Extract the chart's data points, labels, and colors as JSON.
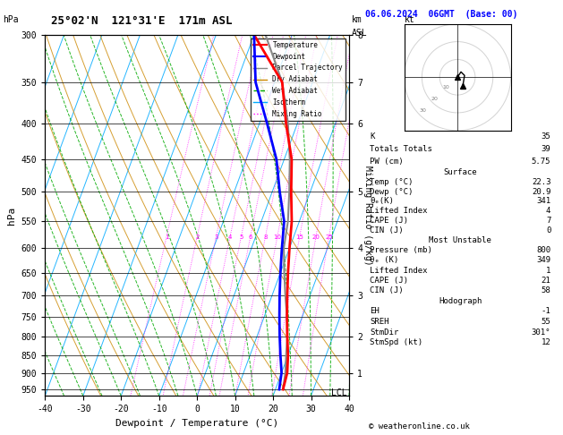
{
  "title_left": "25°02'N  121°31'E  171m ASL",
  "title_date": "06.06.2024  06GMT  (Base: 00)",
  "xlabel": "Dewpoint / Temperature (°C)",
  "ylabel_left": "hPa",
  "pressure_levels": [
    300,
    350,
    400,
    450,
    500,
    550,
    600,
    650,
    700,
    750,
    800,
    850,
    900,
    950
  ],
  "mixing_ratio_values": [
    1,
    2,
    3,
    4,
    5,
    6,
    8,
    10,
    15,
    20,
    25
  ],
  "km_pressures": [
    900,
    800,
    700,
    600,
    500,
    400,
    350,
    300
  ],
  "km_labels": [
    1,
    2,
    3,
    4,
    5,
    6,
    7,
    8
  ],
  "temp_profile_p": [
    950,
    900,
    850,
    800,
    750,
    700,
    650,
    600,
    550,
    500,
    450,
    400,
    350,
    300
  ],
  "temp_profile_T": [
    22.0,
    21.5,
    20.0,
    18.0,
    16.0,
    14.0,
    12.0,
    10.0,
    8.0,
    5.0,
    2.0,
    -3.0,
    -8.0,
    -20.0
  ],
  "dewpoint_profile_p": [
    950,
    900,
    850,
    800,
    750,
    700,
    650,
    600,
    550,
    500,
    450,
    400,
    350,
    300
  ],
  "dewpoint_profile_T": [
    21.0,
    20.0,
    18.0,
    16.0,
    14.0,
    12.0,
    10.0,
    8.0,
    6.0,
    2.0,
    -2.0,
    -8.0,
    -15.0,
    -20.0
  ],
  "parcel_profile_p": [
    950,
    900,
    850,
    800,
    750,
    700,
    650,
    600,
    550,
    500,
    450,
    400,
    350,
    300
  ],
  "parcel_profile_T": [
    22.0,
    21.0,
    19.5,
    18.0,
    16.0,
    13.5,
    11.0,
    8.5,
    7.0,
    4.5,
    1.5,
    -2.5,
    -8.0,
    -17.0
  ],
  "temp_color": "#ff0000",
  "dewpoint_color": "#0000ff",
  "parcel_color": "#888888",
  "dry_adiabat_color": "#cc8800",
  "wet_adiabat_color": "#00aa00",
  "isotherm_color": "#00aaff",
  "mixing_ratio_color": "#ff00ff",
  "pmin": 300,
  "pmax": 970,
  "tmin": -40,
  "tmax": 40,
  "skew": 35,
  "info_K": "35",
  "info_TT": "39",
  "info_PW": "5.75",
  "info_sfc_temp": "22.3",
  "info_sfc_dewp": "20.9",
  "info_sfc_theta": "341",
  "info_sfc_li": "4",
  "info_sfc_cape": "7",
  "info_sfc_cin": "0",
  "info_mu_pres": "800",
  "info_mu_theta": "349",
  "info_mu_li": "1",
  "info_mu_cape": "21",
  "info_mu_cin": "58",
  "info_hodo_eh": "-1",
  "info_hodo_sreh": "55",
  "info_hodo_stmdir": "301°",
  "info_hodo_stmspd": "12"
}
